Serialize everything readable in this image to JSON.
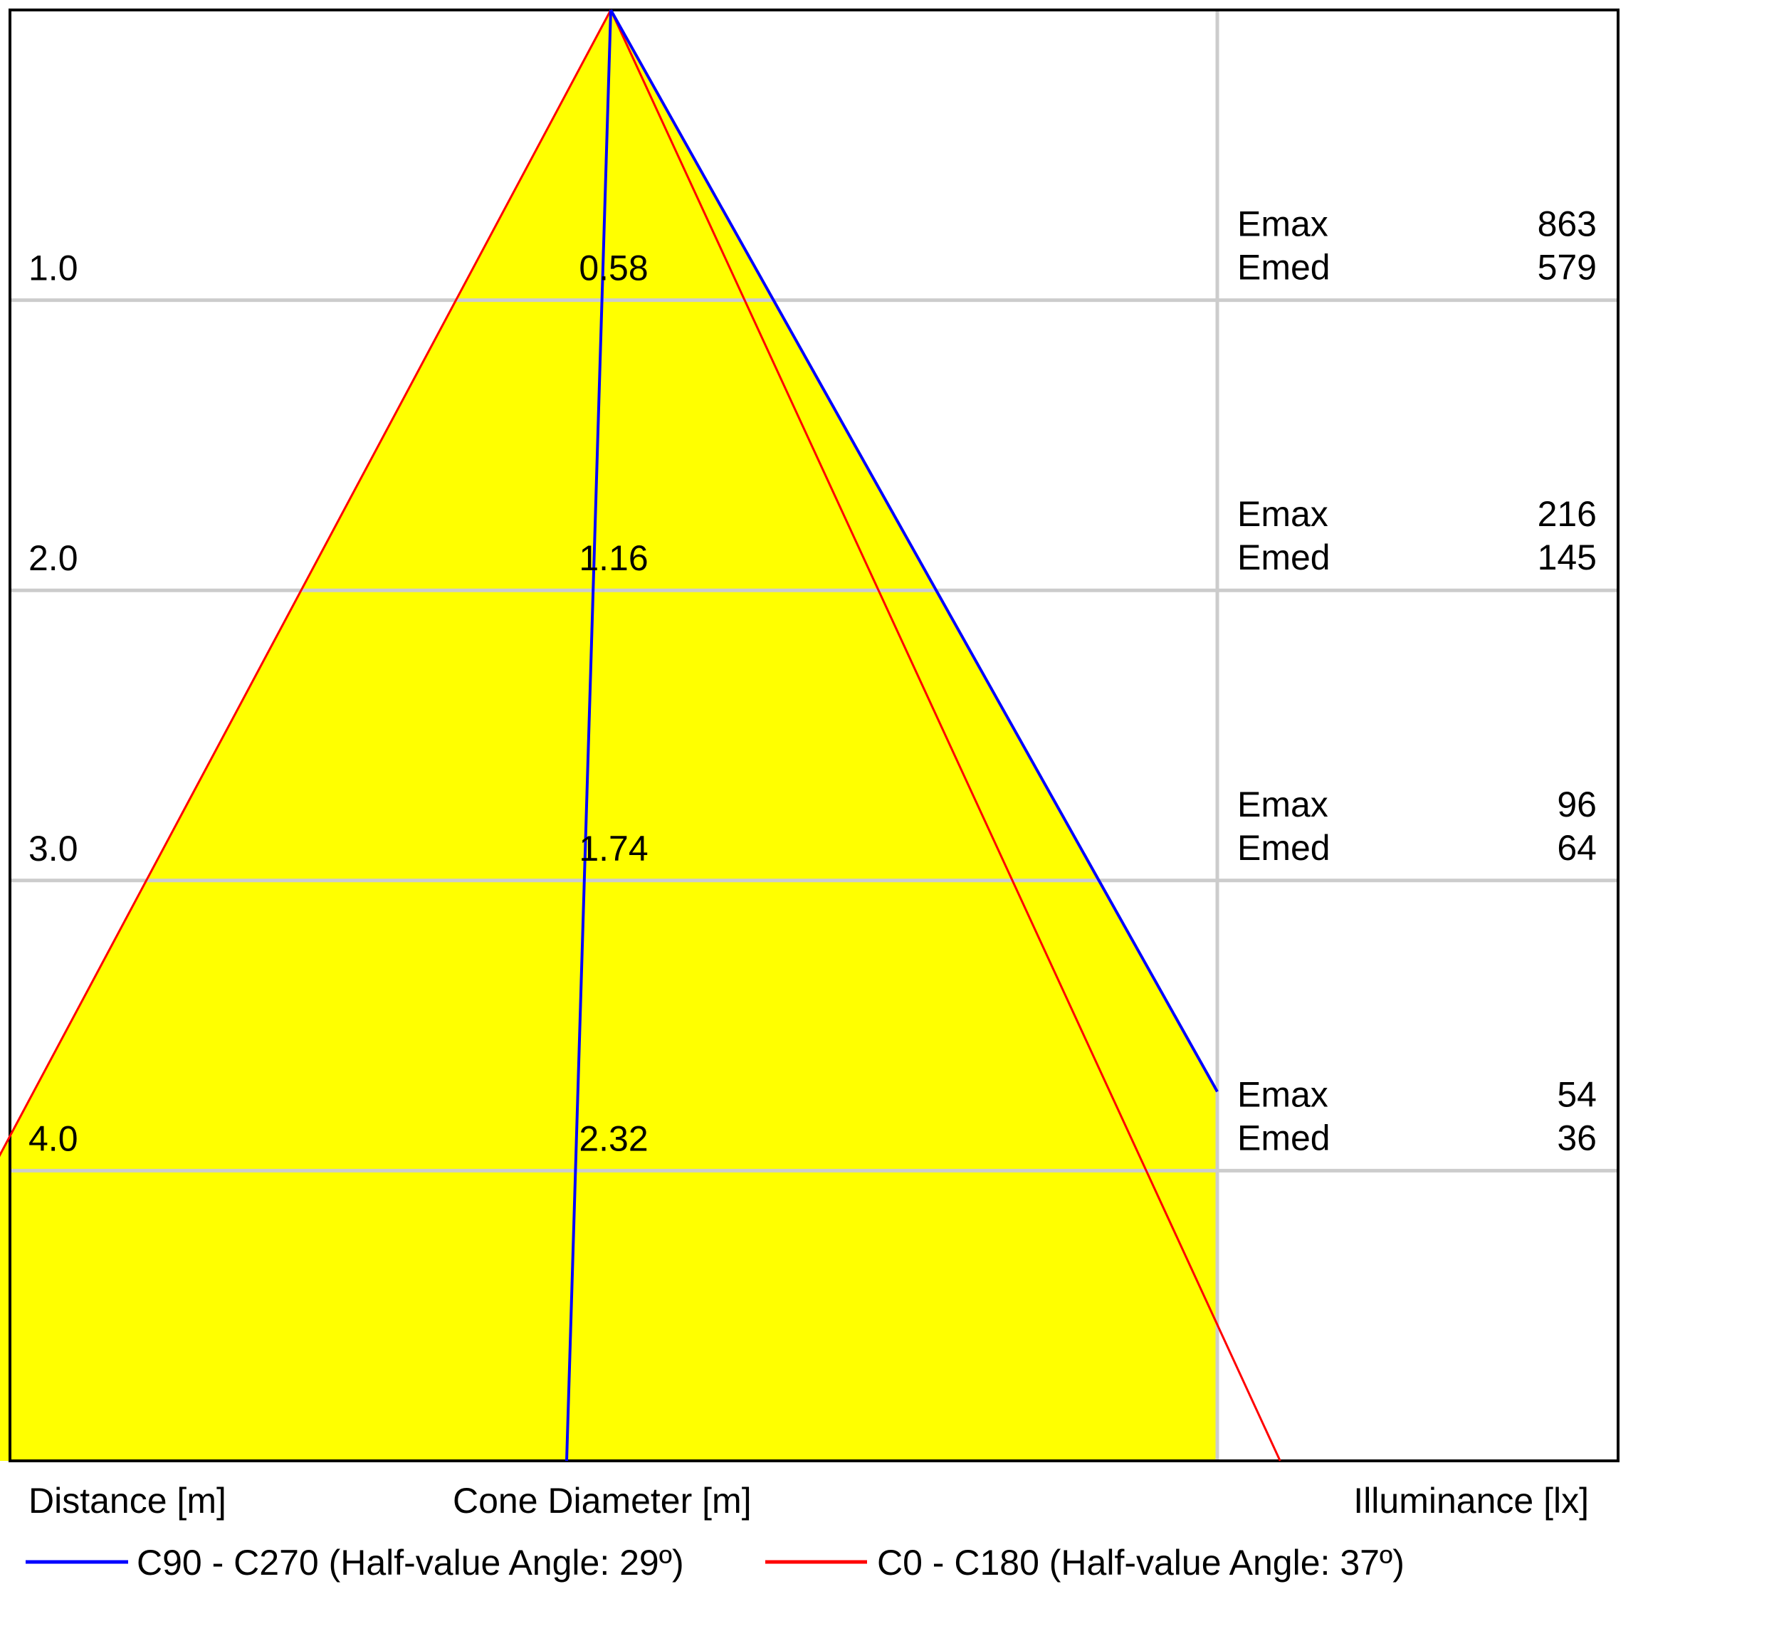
{
  "chart_data": {
    "type": "area",
    "title": "",
    "xlabel": "Cone Diameter [m]",
    "ylabel": "Distance [m]",
    "right_label": "Illuminance [lx]",
    "grid": true,
    "distances": [
      1.0,
      2.0,
      3.0,
      4.0
    ],
    "distance_labels": [
      "1.0",
      "2.0",
      "3.0",
      "4.0"
    ],
    "cone_diameters": [
      "0.58",
      "1.16",
      "1.74",
      "2.32"
    ],
    "illuminance": [
      {
        "emax_label": "Emax",
        "emax": "863",
        "emed_label": "Emed",
        "emed": "579"
      },
      {
        "emax_label": "Emax",
        "emax": "216",
        "emed_label": "Emed",
        "emed": "145"
      },
      {
        "emax_label": "Emax",
        "emax": "96",
        "emed_label": "Emed",
        "emed": "64"
      },
      {
        "emax_label": "Emax",
        "emax": "54",
        "emed_label": "Emed",
        "emed": "36"
      }
    ],
    "series": [
      {
        "name": "C90 - C270 (Half-value Angle: 29º)",
        "color": "#0000ff",
        "half_angle_deg": 29
      },
      {
        "name": "C0 - C180 (Half-value Angle: 37º)",
        "color": "#ff0000",
        "half_angle_deg": 37
      }
    ],
    "fill_color": "#ffff00",
    "grid_color": "#cccccc"
  }
}
